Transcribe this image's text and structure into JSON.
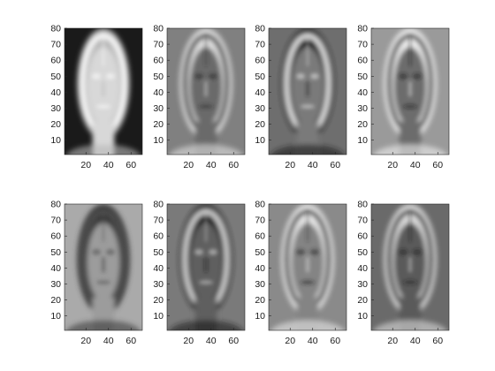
{
  "chart_data": {
    "type": "heatmap",
    "colormap": "gray",
    "description_count": 8,
    "layout": {
      "rows": 2,
      "cols": 4
    },
    "xlim": [
      1,
      70
    ],
    "ylim": [
      1,
      80
    ],
    "x_ticks": [
      20,
      40,
      60
    ],
    "x_tick_labels": [
      "20",
      "40",
      "60"
    ],
    "y_ticks": [
      10,
      20,
      30,
      40,
      50,
      60,
      70,
      80
    ],
    "y_tick_labels": [
      "10",
      "20",
      "30",
      "40",
      "50",
      "60",
      "70",
      "80"
    ],
    "panels": [
      {
        "index": 1,
        "background": "#1a1a1a",
        "face": "#d8d8d8",
        "hair": "#b8b8b8",
        "edge": "#ffffff"
      },
      {
        "index": 2,
        "background": "#808080",
        "face": "#6a6a6a",
        "hair": "#e0e0e0",
        "edge": "#2a2a2a"
      },
      {
        "index": 3,
        "background": "#6e6e6e",
        "face": "#7a7a7a",
        "hair": "#1e1e1e",
        "edge": "#e8e8e8"
      },
      {
        "index": 4,
        "background": "#9a9a9a",
        "face": "#6c6c6c",
        "hair": "#f0f0f0",
        "edge": "#1c1c1c"
      },
      {
        "index": 5,
        "background": "#aaaaaa",
        "face": "#9c9c9c",
        "hair": "#3a3a3a",
        "edge": "#505050"
      },
      {
        "index": 6,
        "background": "#7a7a7a",
        "face": "#5e5e5e",
        "hair": "#1a1a1a",
        "edge": "#d8d8d8"
      },
      {
        "index": 7,
        "background": "#8a8a8a",
        "face": "#848484",
        "hair": "#e8e8e8",
        "edge": "#262626"
      },
      {
        "index": 8,
        "background": "#6a6a6a",
        "face": "#5a5a5a",
        "hair": "#dcdcdc",
        "edge": "#1e1e1e"
      }
    ]
  }
}
